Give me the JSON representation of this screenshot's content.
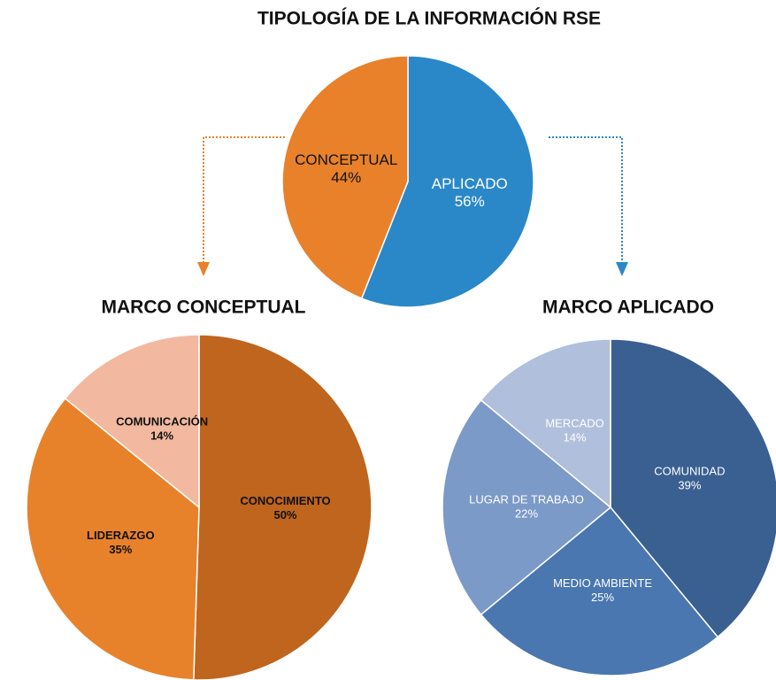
{
  "chart_data": [
    {
      "type": "pie",
      "title": "TIPOLOGÍA DE LA INFORMACIÓN RSE",
      "categories": [
        "APLICADO",
        "CONCEPTUAL"
      ],
      "values": [
        56,
        44
      ],
      "value_labels": [
        "56%",
        "44%"
      ],
      "colors": [
        "#2a88c8",
        "#e8812a"
      ]
    },
    {
      "type": "pie",
      "title": "MARCO CONCEPTUAL",
      "categories": [
        "CONOCIMIENTO",
        "LIDERAZGO",
        "COMUNICACIÓN"
      ],
      "values": [
        50,
        35,
        14
      ],
      "value_labels": [
        "50%",
        "35%",
        "14%"
      ],
      "colors": [
        "#c0651e",
        "#e8822a",
        "#f2b9a0"
      ]
    },
    {
      "type": "pie",
      "title": "MARCO APLICADO",
      "categories": [
        "COMUNIDAD",
        "MEDIO AMBIENTE",
        "LUGAR DE TRABAJO",
        "MERCADO"
      ],
      "values": [
        39,
        25,
        22,
        14
      ],
      "value_labels": [
        "39%",
        "25%",
        "22%",
        "14%"
      ],
      "colors": [
        "#3a5f91",
        "#4a77b0",
        "#7b9ac8",
        "#b0bfdc"
      ]
    }
  ]
}
